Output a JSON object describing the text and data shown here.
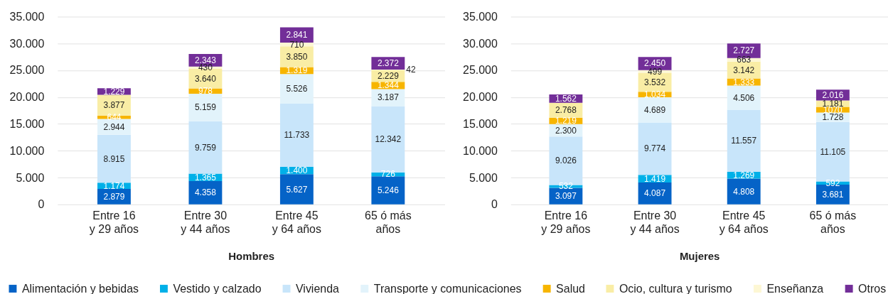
{
  "chart_data": [
    {
      "type": "bar",
      "stacked": true,
      "xlabel": "Hombres",
      "categories": [
        "Entre 16 y 29 años",
        "Entre 30 y 44 años",
        "Entre 45 y 64 años",
        "65 ó más años"
      ],
      "series": [
        {
          "name": "Alimentación y bebidas",
          "color": "#0563c7",
          "values": [
            2879,
            4358,
            5627,
            5246
          ],
          "value_labels": [
            "2.879",
            "4.358",
            "5.627",
            "5.246"
          ]
        },
        {
          "name": "Vestido y calzado",
          "color": "#00b0e8",
          "values": [
            1174,
            1365,
            1400,
            726
          ],
          "value_labels": [
            "1.174",
            "1.365",
            "1.400",
            "726"
          ]
        },
        {
          "name": "Vivienda",
          "color": "#c8e5fa",
          "values": [
            8915,
            9759,
            11733,
            12342
          ],
          "value_labels": [
            "8.915",
            "9.759",
            "11.733",
            "12.342"
          ]
        },
        {
          "name": "Transporte y comunicaciones",
          "color": "#e2f3fb",
          "values": [
            2944,
            5159,
            5526,
            3187
          ],
          "value_labels": [
            "2.944",
            "5.159",
            "5.526",
            "3.187"
          ]
        },
        {
          "name": "Salud",
          "color": "#f7b500",
          "values": [
            644,
            978,
            1319,
            1344
          ],
          "value_labels": [
            "644",
            "978",
            "1.319",
            "1.344"
          ]
        },
        {
          "name": "Ocio, cultura y turismo",
          "color": "#f9eda5",
          "values": [
            3877,
            3640,
            3850,
            2229
          ],
          "value_labels": [
            "3.877",
            "3.640",
            "3.850",
            "2.229"
          ]
        },
        {
          "name": "Enseñanza",
          "color": "#fdf7d4",
          "values": [
            null,
            430,
            710,
            42
          ],
          "value_labels": [
            null,
            "430",
            "710",
            "42"
          ]
        },
        {
          "name": "Otros",
          "color": "#722e98",
          "values": [
            1229,
            2343,
            2841,
            2372
          ],
          "value_labels": [
            "1.229",
            "2.343",
            "2.841",
            "2.372"
          ]
        }
      ],
      "ylim": [
        0,
        35000
      ],
      "yticks": [
        {
          "value": 0,
          "label": "0"
        },
        {
          "value": 5000,
          "label": "5.000"
        },
        {
          "value": 10000,
          "label": "10.000"
        },
        {
          "value": 15000,
          "label": "15.000"
        },
        {
          "value": 20000,
          "label": "20.000"
        },
        {
          "value": 25000,
          "label": "25.000"
        },
        {
          "value": 30000,
          "label": "30.000"
        },
        {
          "value": 35000,
          "label": "35.000"
        }
      ],
      "grid": "y",
      "legend": "bottom"
    },
    {
      "type": "bar",
      "stacked": true,
      "xlabel": "Mujeres",
      "categories": [
        "Entre 16 y 29 años",
        "Entre 30 y 44 años",
        "Entre 45 y 64 años",
        "65 ó más años"
      ],
      "series": [
        {
          "name": "Alimentación y bebidas",
          "color": "#0563c7",
          "values": [
            3097,
            4087,
            4808,
            3681
          ],
          "value_labels": [
            "3.097",
            "4.087",
            "4.808",
            "3.681"
          ]
        },
        {
          "name": "Vestido y calzado",
          "color": "#00b0e8",
          "values": [
            532,
            1419,
            1269,
            592
          ],
          "value_labels": [
            "532",
            "1.419",
            "1.269",
            "592"
          ]
        },
        {
          "name": "Vivienda",
          "color": "#c8e5fa",
          "values": [
            9026,
            9774,
            11557,
            11105
          ],
          "value_labels": [
            "9.026",
            "9.774",
            "11.557",
            "11.105"
          ]
        },
        {
          "name": "Transporte y comunicaciones",
          "color": "#e2f3fb",
          "values": [
            2300,
            4689,
            4506,
            1728
          ],
          "value_labels": [
            "2.300",
            "4.689",
            "4.506",
            "1.728"
          ]
        },
        {
          "name": "Salud",
          "color": "#f7b500",
          "values": [
            1219,
            1034,
            1333,
            1070
          ],
          "value_labels": [
            "1.219",
            "1.034",
            "1.333",
            "1070"
          ]
        },
        {
          "name": "Ocio, cultura y turismo",
          "color": "#f9eda5",
          "values": [
            2768,
            3532,
            3142,
            1181
          ],
          "value_labels": [
            "2.768",
            "3.532",
            "3.142",
            "1.181"
          ]
        },
        {
          "name": "Enseñanza",
          "color": "#fdf7d4",
          "values": [
            null,
            499,
            663,
            null
          ],
          "value_labels": [
            null,
            "499",
            "663",
            null
          ]
        },
        {
          "name": "Otros",
          "color": "#722e98",
          "values": [
            1562,
            2450,
            2727,
            2016
          ],
          "value_labels": [
            "1.562",
            "2.450",
            "2.727",
            "2.016"
          ]
        }
      ],
      "ylim": [
        0,
        35000
      ],
      "yticks": [
        {
          "value": 0,
          "label": "0"
        },
        {
          "value": 5000,
          "label": "5.000"
        },
        {
          "value": 10000,
          "label": "10.000"
        },
        {
          "value": 15000,
          "label": "15.000"
        },
        {
          "value": 20000,
          "label": "20.000"
        },
        {
          "value": 25000,
          "label": "25.000"
        },
        {
          "value": 30000,
          "label": "30.000"
        },
        {
          "value": 35000,
          "label": "35.000"
        }
      ],
      "grid": "y",
      "legend": "bottom"
    }
  ]
}
